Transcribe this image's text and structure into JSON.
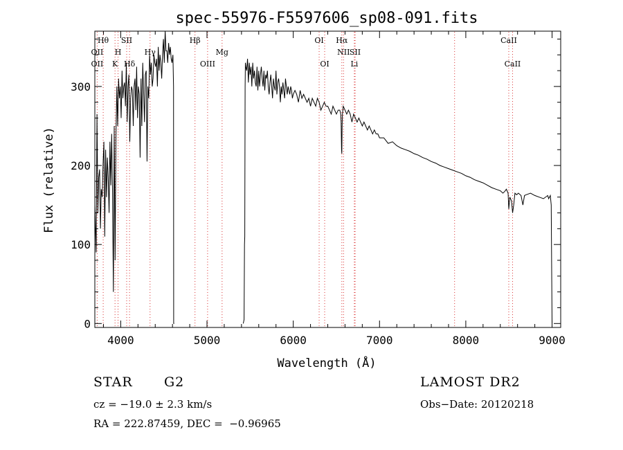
{
  "chart_data": {
    "type": "line",
    "title": "spec-55976-F5597606_sp08-091.fits",
    "xlabel": "Wavelength (Å)",
    "ylabel": "Flux (relative)",
    "xlim": [
      3700,
      9100
    ],
    "ylim": [
      -5,
      370
    ],
    "xticks": [
      4000,
      5000,
      6000,
      7000,
      8000,
      9000
    ],
    "yticks": [
      0,
      100,
      200,
      300
    ],
    "grid": false,
    "series": [
      {
        "color": "#000000",
        "segments": [
          {
            "x": [
              3700,
              3715,
              3725,
              3735,
              3745,
              3755,
              3765,
              3775,
              3785,
              3795,
              3805,
              3815,
              3825,
              3835,
              3845,
              3855,
              3865,
              3875,
              3885,
              3895,
              3905,
              3915,
              3925,
              3935,
              3945,
              3955,
              3965,
              3975,
              3985,
              3995,
              4005,
              4015,
              4025,
              4035,
              4045,
              4055,
              4065,
              4075,
              4085,
              4095,
              4105,
              4115,
              4125,
              4135,
              4145,
              4155,
              4165,
              4175,
              4185,
              4195,
              4205,
              4215,
              4225,
              4235,
              4245,
              4255,
              4265,
              4275,
              4285,
              4295,
              4305,
              4315,
              4325,
              4335,
              4345,
              4355,
              4365,
              4375,
              4385,
              4395,
              4405,
              4415,
              4425,
              4435,
              4445,
              4455,
              4465,
              4475,
              4485,
              4495,
              4505,
              4515,
              4525,
              4535,
              4545,
              4555,
              4565,
              4575,
              4585,
              4595,
              4605,
              4612,
              4614,
              4620
            ],
            "y": [
              150,
              90,
              265,
              140,
              185,
              195,
              120,
              170,
              160,
              200,
              230,
              110,
              220,
              160,
              210,
              185,
              140,
              230,
              175,
              240,
              170,
              40,
              250,
              80,
              235,
              300,
              250,
              310,
              285,
              300,
              260,
              320,
              285,
              300,
              305,
              275,
              330,
              255,
              300,
              315,
              230,
              285,
              300,
              295,
              250,
              300,
              310,
              270,
              325,
              260,
              300,
              290,
              210,
              310,
              250,
              330,
              295,
              255,
              315,
              320,
              205,
              300,
              285,
              340,
              315,
              330,
              300,
              310,
              340,
              330,
              325,
              335,
              300,
              350,
              320,
              340,
              330,
              310,
              340,
              360,
              330,
              370,
              345,
              345,
              330,
              355,
              340,
              350,
              335,
              330,
              340,
              300,
              0,
              0
            ]
          },
          {
            "x": [
              5420,
              5430,
              5435,
              5438,
              5442,
              5445,
              5450,
              5460,
              5470,
              5480,
              5490,
              5500,
              5510,
              5520,
              5530,
              5540,
              5550,
              5560,
              5570,
              5580,
              5590,
              5600,
              5610,
              5620,
              5630,
              5640,
              5650,
              5660,
              5670,
              5680,
              5690,
              5700,
              5710,
              5720,
              5730,
              5740,
              5750,
              5760,
              5770,
              5780,
              5790,
              5800,
              5810,
              5820,
              5830,
              5840,
              5850,
              5860,
              5870,
              5880,
              5890,
              5900,
              5910,
              5920,
              5930,
              5940,
              5950,
              5960,
              5970,
              5980,
              5990,
              6000,
              6020,
              6040,
              6060,
              6080,
              6100,
              6120,
              6140,
              6160,
              6180,
              6200,
              6220,
              6240,
              6260,
              6280,
              6300,
              6320,
              6340,
              6360,
              6380,
              6400,
              6420,
              6440,
              6460,
              6480,
              6500,
              6520,
              6540,
              6550,
              6555,
              6560,
              6563,
              6566,
              6570,
              6575,
              6580,
              6600,
              6620,
              6640,
              6660,
              6680,
              6700,
              6720,
              6740,
              6760,
              6780,
              6800,
              6820,
              6840,
              6860,
              6880,
              6900,
              6920,
              6940,
              6960,
              6980,
              7000,
              7050,
              7100,
              7150,
              7200,
              7250,
              7300,
              7350,
              7400,
              7450,
              7500,
              7550,
              7600,
              7650,
              7700,
              7750,
              7800,
              7850,
              7900,
              7950,
              8000,
              8050,
              8100,
              8150,
              8200,
              8250,
              8300,
              8350,
              8400,
              8430,
              8450,
              8470,
              8490,
              8498,
              8510,
              8530,
              8542,
              8555,
              8570,
              8590,
              8610,
              8640,
              8662,
              8680,
              8700,
              8750,
              8800,
              8850,
              8900,
              8950,
              8960,
              8970,
              8980,
              8990,
              9000
            ],
            "y": [
              0,
              5,
              100,
              110,
              300,
              330,
              325,
              320,
              335,
              305,
              330,
              315,
              325,
              300,
              330,
              310,
              320,
              305,
              300,
              325,
              295,
              320,
              300,
              315,
              325,
              310,
              300,
              320,
              295,
              315,
              310,
              320,
              300,
              290,
              305,
              315,
              300,
              285,
              310,
              300,
              295,
              320,
              290,
              305,
              310,
              300,
              280,
              300,
              290,
              305,
              295,
              285,
              310,
              300,
              290,
              300,
              295,
              290,
              300,
              295,
              285,
              290,
              295,
              290,
              280,
              295,
              285,
              290,
              285,
              280,
              285,
              275,
              285,
              280,
              275,
              285,
              280,
              270,
              275,
              280,
              275,
              275,
              270,
              265,
              275,
              270,
              265,
              270,
              270,
              265,
              255,
              220,
              215,
              250,
              265,
              270,
              275,
              270,
              265,
              270,
              265,
              255,
              265,
              260,
              255,
              260,
              255,
              250,
              255,
              250,
              245,
              250,
              245,
              240,
              245,
              240,
              240,
              235,
              235,
              228,
              230,
              225,
              222,
              220,
              218,
              215,
              213,
              210,
              208,
              205,
              203,
              200,
              198,
              196,
              194,
              192,
              190,
              187,
              185,
              182,
              180,
              178,
              175,
              172,
              170,
              168,
              165,
              167,
              170,
              165,
              145,
              160,
              155,
              140,
              150,
              165,
              163,
              165,
              162,
              150,
              162,
              163,
              165,
              162,
              160,
              158,
              162,
              158,
              160,
              162,
              150,
              0
            ]
          }
        ]
      }
    ],
    "lines_top": [
      {
        "label": "Hθ",
        "x": 3797
      },
      {
        "label": "SII",
        "x": 4069
      },
      {
        "label": "Hβ",
        "x": 4861
      },
      {
        "label": "OI",
        "x": 6300
      },
      {
        "label": "Hα",
        "x": 6563
      },
      {
        "label": "CaII",
        "x": 8498
      }
    ],
    "lines_mid": [
      {
        "label": "OII",
        "x": 3727
      },
      {
        "label": "H",
        "x": 3969
      },
      {
        "label": "Hγ",
        "x": 4340
      },
      {
        "label": "Mg",
        "x": 5175
      },
      {
        "label": "NII",
        "x": 6583
      },
      {
        "label": "SII",
        "x": 6717
      }
    ],
    "lines_bot": [
      {
        "label": "OII",
        "x": 3727
      },
      {
        "label": "K",
        "x": 3934
      },
      {
        "label": "Hδ",
        "x": 4102
      },
      {
        "label": "OIII",
        "x": 5007
      },
      {
        "label": "OI",
        "x": 6364
      },
      {
        "label": "Li",
        "x": 6708
      },
      {
        "label": "CaII",
        "x": 8542
      }
    ],
    "marker_lines_x": [
      3727,
      3797,
      3934,
      3969,
      4069,
      4102,
      4340,
      4861,
      5007,
      5175,
      6300,
      6364,
      6563,
      6583,
      6708,
      6717,
      7870,
      8498,
      8542
    ],
    "marker_color": "#d93030"
  },
  "info": {
    "object_class": "STAR",
    "subclass": "G2",
    "survey": "LAMOST DR2",
    "cz": "cz = −19.0 ± 2.3 km/s",
    "obs_date": "Obs−Date: 20120218",
    "coords": "RA = 222.87459, DEC =  −0.96965"
  }
}
